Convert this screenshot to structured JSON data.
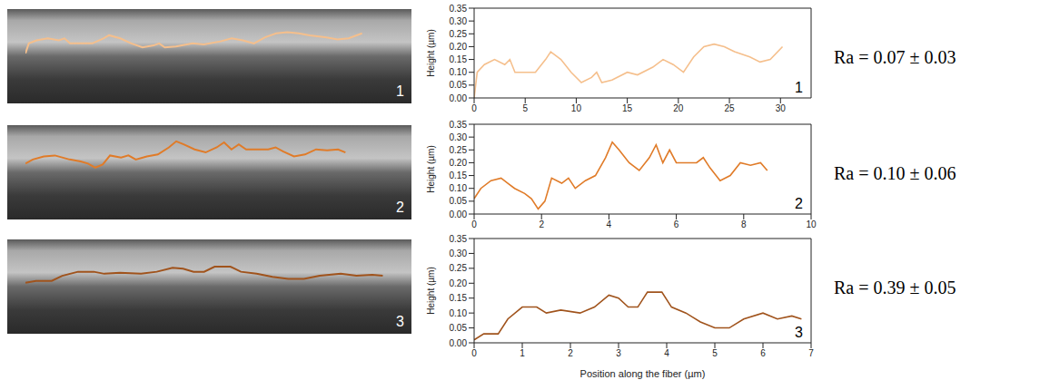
{
  "chart_data": [
    {
      "type": "line",
      "image_label": "1",
      "label": "1",
      "annotation": "Ra = 0.07 ± 0.03",
      "ylabel": "Height (µm)",
      "color": "#f5bf8c",
      "x": [
        0,
        0.3,
        1,
        2,
        3,
        3.5,
        4,
        5,
        6,
        7,
        7.5,
        8.5,
        9.5,
        10.5,
        11.5,
        12,
        12.5,
        13.5,
        15,
        16,
        17.5,
        18.5,
        19.5,
        20.5,
        21.5,
        22.5,
        23.5,
        24.5,
        25.5,
        27,
        28,
        29,
        30.2
      ],
      "values": [
        0.0,
        0.1,
        0.13,
        0.15,
        0.13,
        0.15,
        0.1,
        0.1,
        0.1,
        0.15,
        0.18,
        0.15,
        0.1,
        0.06,
        0.08,
        0.1,
        0.06,
        0.07,
        0.1,
        0.09,
        0.12,
        0.15,
        0.13,
        0.1,
        0.16,
        0.2,
        0.21,
        0.2,
        0.18,
        0.16,
        0.14,
        0.15,
        0.2
      ],
      "xlim": [
        0,
        33
      ],
      "xticks": [
        0,
        5,
        10,
        15,
        20,
        25,
        30
      ],
      "ylim": [
        0,
        0.35
      ],
      "yticks": [
        {
          "value": 0,
          "label": "0.00"
        },
        {
          "value": 0.05,
          "label": "0.05"
        },
        {
          "value": 0.1,
          "label": "0.10"
        },
        {
          "value": 0.15,
          "label": "0.15"
        },
        {
          "value": 0.2,
          "label": "0.20"
        },
        {
          "value": 0.25,
          "label": "0.25"
        },
        {
          "value": 0.3,
          "label": "0.30"
        },
        {
          "value": 0.35,
          "label": "0.35"
        }
      ]
    },
    {
      "type": "line",
      "image_label": "2",
      "label": "2",
      "annotation": "Ra = 0.10 ± 0.06",
      "ylabel": "Height (µm)",
      "color": "#e07b28",
      "x": [
        0,
        0.2,
        0.5,
        0.8,
        1,
        1.2,
        1.5,
        1.7,
        1.9,
        2.1,
        2.3,
        2.6,
        2.8,
        3,
        3.3,
        3.6,
        3.9,
        4.1,
        4.3,
        4.6,
        4.9,
        5.2,
        5.4,
        5.6,
        5.8,
        6,
        6.3,
        6.6,
        6.8,
        7,
        7.3,
        7.6,
        7.9,
        8.2,
        8.5,
        8.7
      ],
      "values": [
        0.06,
        0.1,
        0.13,
        0.14,
        0.12,
        0.1,
        0.08,
        0.06,
        0.02,
        0.05,
        0.14,
        0.12,
        0.14,
        0.1,
        0.13,
        0.15,
        0.22,
        0.28,
        0.25,
        0.2,
        0.17,
        0.22,
        0.27,
        0.2,
        0.25,
        0.2,
        0.2,
        0.2,
        0.22,
        0.18,
        0.13,
        0.15,
        0.2,
        0.19,
        0.2,
        0.17
      ],
      "xlim": [
        0,
        10
      ],
      "xticks": [
        0,
        2,
        4,
        6,
        8,
        10
      ],
      "ylim": [
        0,
        0.35
      ],
      "yticks": [
        {
          "value": 0,
          "label": "0.00"
        },
        {
          "value": 0.05,
          "label": "0.05"
        },
        {
          "value": 0.1,
          "label": "0.10"
        },
        {
          "value": 0.15,
          "label": "0.15"
        },
        {
          "value": 0.2,
          "label": "0.20"
        },
        {
          "value": 0.25,
          "label": "0.25"
        },
        {
          "value": 0.3,
          "label": "0.30"
        },
        {
          "value": 0.35,
          "label": "0.35"
        }
      ]
    },
    {
      "type": "line",
      "image_label": "3",
      "label": "3",
      "annotation": "Ra = 0.39 ± 0.05",
      "ylabel": "Height (µm)",
      "xlabel": "Position along the fiber (µm)",
      "color": "#a0531c",
      "x": [
        0,
        0.2,
        0.5,
        0.7,
        1,
        1.3,
        1.5,
        1.8,
        2.2,
        2.5,
        2.8,
        3,
        3.2,
        3.4,
        3.6,
        3.9,
        4.1,
        4.4,
        4.7,
        5,
        5.3,
        5.6,
        6,
        6.3,
        6.6,
        6.8
      ],
      "values": [
        0.01,
        0.03,
        0.03,
        0.08,
        0.12,
        0.12,
        0.1,
        0.11,
        0.1,
        0.12,
        0.16,
        0.15,
        0.12,
        0.12,
        0.17,
        0.17,
        0.12,
        0.1,
        0.07,
        0.05,
        0.05,
        0.08,
        0.1,
        0.08,
        0.09,
        0.08
      ],
      "xlim": [
        0,
        7
      ],
      "xticks": [
        0,
        1,
        2,
        3,
        4,
        5,
        6,
        7
      ],
      "ylim": [
        0,
        0.35
      ],
      "yticks": [
        {
          "value": 0,
          "label": "0.00"
        },
        {
          "value": 0.05,
          "label": "0.05"
        },
        {
          "value": 0.1,
          "label": "0.10"
        },
        {
          "value": 0.15,
          "label": "0.15"
        },
        {
          "value": 0.2,
          "label": "0.20"
        },
        {
          "value": 0.25,
          "label": "0.25"
        },
        {
          "value": 0.3,
          "label": "0.30"
        },
        {
          "value": 0.35,
          "label": "0.35"
        }
      ]
    }
  ]
}
